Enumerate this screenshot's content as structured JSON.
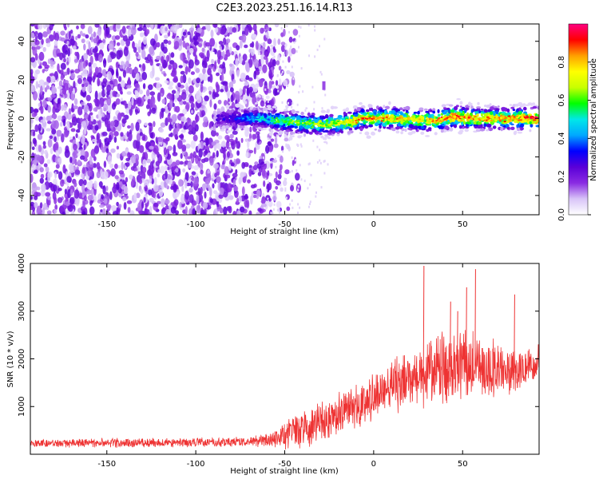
{
  "title": "C2E3.2023.251.16.14.R13",
  "chart_data": [
    {
      "type": "heatmap",
      "xlabel": "Height of straight line (km)",
      "ylabel": "Frequency (Hz)",
      "xlim": [
        -193,
        93
      ],
      "ylim": [
        -50,
        49
      ],
      "xticks": [
        -150,
        -100,
        -50,
        0,
        50
      ],
      "yticks": [
        -40,
        -20,
        0,
        20,
        40
      ],
      "colorbar": {
        "label": "Normalized spectral amplitude",
        "range": [
          0,
          1
        ],
        "ticks": [
          0.0,
          0.2,
          0.4,
          0.6,
          0.8
        ],
        "colors": [
          "#ffffff",
          "#d8c4f8",
          "#8a2be2",
          "#5a00d8",
          "#0000ff",
          "#00a8ff",
          "#00e8e8",
          "#00ff00",
          "#c8ff00",
          "#ffff00",
          "#ffa000",
          "#ff0000",
          "#ff0080"
        ]
      },
      "noise_region": {
        "x_range": [
          -193,
          -65
        ],
        "amplitude": [
          0.05,
          0.25
        ]
      },
      "ridge": [
        {
          "x": -88,
          "f": 0,
          "amp": 0.25
        },
        {
          "x": -75,
          "f": 0,
          "amp": 0.35
        },
        {
          "x": -65,
          "f": 0,
          "amp": 0.45
        },
        {
          "x": -55,
          "f": -1,
          "amp": 0.55
        },
        {
          "x": -45,
          "f": -2,
          "amp": 0.6
        },
        {
          "x": -35,
          "f": -3,
          "amp": 0.62
        },
        {
          "x": -25,
          "f": -3,
          "amp": 0.66
        },
        {
          "x": -15,
          "f": -2,
          "amp": 0.72
        },
        {
          "x": -5,
          "f": 0,
          "amp": 0.82
        },
        {
          "x": 5,
          "f": 0,
          "amp": 0.78
        },
        {
          "x": 15,
          "f": 0,
          "amp": 0.76
        },
        {
          "x": 25,
          "f": -1,
          "amp": 0.74
        },
        {
          "x": 35,
          "f": -1,
          "amp": 0.78
        },
        {
          "x": 45,
          "f": 1,
          "amp": 0.86
        },
        {
          "x": 55,
          "f": 0,
          "amp": 0.8
        },
        {
          "x": 65,
          "f": 0,
          "amp": 0.78
        },
        {
          "x": 75,
          "f": 0,
          "amp": 0.8
        },
        {
          "x": 85,
          "f": 0,
          "amp": 0.85
        },
        {
          "x": 92,
          "f": 0,
          "amp": 0.9
        }
      ],
      "spurs": [
        {
          "x": -28,
          "f": 18,
          "amp": 0.15
        },
        {
          "x": -28,
          "f": 16,
          "amp": 0.15
        }
      ]
    },
    {
      "type": "line",
      "xlabel": "Height of straight line (km)",
      "ylabel": "SNR (10 * v/v)",
      "xlim": [
        -193,
        93
      ],
      "ylim": [
        0,
        4000
      ],
      "xticks": [
        -150,
        -100,
        -50,
        0,
        50
      ],
      "yticks": [
        1000,
        2000,
        3000,
        4000
      ],
      "color": "#ee3333",
      "series": [
        {
          "x": [
            -193,
            -180,
            -170,
            -160,
            -150,
            -140,
            -130,
            -120,
            -110,
            -100,
            -90,
            -80,
            -70,
            -60,
            -55,
            -50,
            -45,
            -40,
            -35,
            -30,
            -25,
            -20,
            -15,
            -10,
            -5,
            0,
            5,
            10,
            15,
            20,
            25,
            30,
            35,
            40,
            45,
            50,
            55,
            60,
            65,
            70,
            75,
            80,
            85,
            93
          ],
          "mean": [
            230,
            230,
            235,
            240,
            245,
            240,
            240,
            245,
            240,
            250,
            250,
            250,
            260,
            300,
            330,
            400,
            480,
            550,
            600,
            650,
            750,
            850,
            920,
            1000,
            1100,
            1250,
            1350,
            1450,
            1500,
            1650,
            1700,
            1750,
            1750,
            1800,
            1850,
            1850,
            1850,
            1850,
            1800,
            1800,
            1800,
            1800,
            1800,
            1900
          ],
          "spread": [
            80,
            80,
            85,
            90,
            90,
            90,
            90,
            90,
            90,
            95,
            95,
            95,
            100,
            150,
            200,
            300,
            330,
            350,
            380,
            400,
            420,
            420,
            420,
            430,
            450,
            480,
            500,
            520,
            550,
            580,
            620,
            700,
            700,
            650,
            650,
            700,
            700,
            650,
            600,
            550,
            500,
            450,
            420,
            380
          ],
          "peaks": [
            {
              "x": 28,
              "y": 3950
            },
            {
              "x": 57,
              "y": 3880
            },
            {
              "x": 52,
              "y": 3500
            },
            {
              "x": 79,
              "y": 3350
            },
            {
              "x": 43,
              "y": 3200
            },
            {
              "x": 47,
              "y": 3000
            }
          ]
        }
      ]
    }
  ]
}
